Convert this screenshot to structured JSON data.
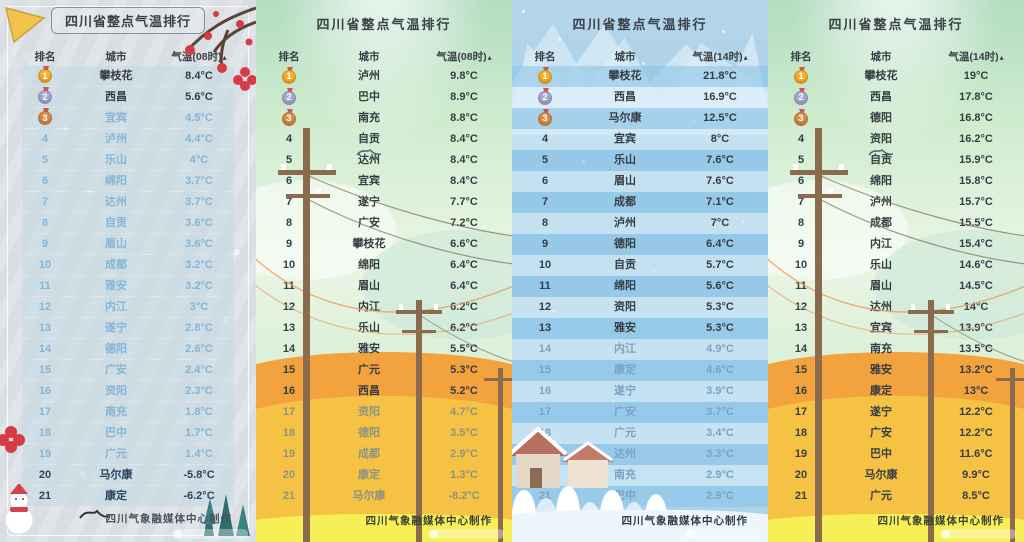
{
  "colors": {
    "accent_red": "#d6404a",
    "medal_gold": "#f4b12d",
    "medal_silver": "#a9a9cf",
    "medal_bronze": "#d98c46",
    "hill_orange": "#f2a33e",
    "hill_gold": "#f6c244",
    "hill_yellow": "#f6ef55"
  },
  "chart_data": [
    {
      "type": "table",
      "theme": "winter-frost-gray",
      "title": "四川省整点气温排行",
      "columns": [
        "排名",
        "城市",
        "气温(08时)"
      ],
      "sort_indicator": "▴",
      "footer": "四川气象融媒体中心制作",
      "rows": [
        [
          1,
          "攀枝花",
          "8.4°C"
        ],
        [
          2,
          "西昌",
          "5.6°C"
        ],
        [
          3,
          "宜宾",
          "4.5°C"
        ],
        [
          4,
          "泸州",
          "4.4°C"
        ],
        [
          5,
          "乐山",
          "4°C"
        ],
        [
          6,
          "绵阳",
          "3.7°C"
        ],
        [
          7,
          "达州",
          "3.7°C"
        ],
        [
          8,
          "自贡",
          "3.6°C"
        ],
        [
          9,
          "眉山",
          "3.6°C"
        ],
        [
          10,
          "成都",
          "3.2°C"
        ],
        [
          11,
          "雅安",
          "3.2°C"
        ],
        [
          12,
          "内江",
          "3°C"
        ],
        [
          13,
          "遂宁",
          "2.8°C"
        ],
        [
          14,
          "德阳",
          "2.6°C"
        ],
        [
          15,
          "广安",
          "2.4°C"
        ],
        [
          16,
          "资阳",
          "2.3°C"
        ],
        [
          17,
          "南充",
          "1.8°C"
        ],
        [
          18,
          "巴中",
          "1.7°C"
        ],
        [
          19,
          "广元",
          "1.4°C"
        ],
        [
          20,
          "马尔康",
          "-5.8°C"
        ],
        [
          21,
          "康定",
          "-6.2°C"
        ]
      ],
      "row_tones": [
        "dark",
        "dark",
        "light",
        "light",
        "light",
        "light",
        "light",
        "light",
        "light",
        "light",
        "light",
        "light",
        "light",
        "light",
        "light",
        "light",
        "light",
        "light",
        "light",
        "navy",
        "navy"
      ]
    },
    {
      "type": "table",
      "theme": "green-morning-hills",
      "title": "四川省整点气温排行",
      "columns": [
        "排名",
        "城市",
        "气温(08时)"
      ],
      "sort_indicator": "▴",
      "footer": "四川气象融媒体中心制作",
      "rows": [
        [
          1,
          "泸州",
          "9.8°C"
        ],
        [
          2,
          "巴中",
          "8.9°C"
        ],
        [
          3,
          "南充",
          "8.8°C"
        ],
        [
          4,
          "自贡",
          "8.4°C"
        ],
        [
          5,
          "达州",
          "8.4°C"
        ],
        [
          6,
          "宜宾",
          "8.4°C"
        ],
        [
          7,
          "遂宁",
          "7.7°C"
        ],
        [
          8,
          "广安",
          "7.2°C"
        ],
        [
          9,
          "攀枝花",
          "6.6°C"
        ],
        [
          10,
          "绵阳",
          "6.4°C"
        ],
        [
          11,
          "眉山",
          "6.4°C"
        ],
        [
          12,
          "内江",
          "6.2°C"
        ],
        [
          13,
          "乐山",
          "6.2°C"
        ],
        [
          14,
          "雅安",
          "5.5°C"
        ],
        [
          15,
          "广元",
          "5.3°C"
        ],
        [
          16,
          "西昌",
          "5.2°C"
        ],
        [
          17,
          "资阳",
          "4.7°C"
        ],
        [
          18,
          "德阳",
          "3.5°C"
        ],
        [
          19,
          "成都",
          "2.9°C"
        ],
        [
          20,
          "康定",
          "1.3°C"
        ],
        [
          21,
          "马尔康",
          "-8.2°C"
        ]
      ],
      "row_tones": [
        "dark",
        "dark",
        "dark",
        "dark",
        "dark",
        "dark",
        "dark",
        "dark",
        "dark",
        "dark",
        "dark",
        "dark",
        "dark",
        "dark",
        "dark",
        "dark",
        "muted",
        "muted",
        "muted",
        "muted",
        "muted"
      ]
    },
    {
      "type": "table",
      "theme": "blue-snow",
      "title": "四川省整点气温排行",
      "columns": [
        "排名",
        "城市",
        "气温(14时)"
      ],
      "sort_indicator": "▴",
      "footer": "四川气象融媒体中心制作",
      "rows": [
        [
          1,
          "攀枝花",
          "21.8°C"
        ],
        [
          2,
          "西昌",
          "16.9°C"
        ],
        [
          3,
          "马尔康",
          "12.5°C"
        ],
        [
          4,
          "宜宾",
          "8°C"
        ],
        [
          5,
          "乐山",
          "7.6°C"
        ],
        [
          6,
          "眉山",
          "7.6°C"
        ],
        [
          7,
          "成都",
          "7.1°C"
        ],
        [
          8,
          "泸州",
          "7°C"
        ],
        [
          9,
          "德阳",
          "6.4°C"
        ],
        [
          10,
          "自贡",
          "5.7°C"
        ],
        [
          11,
          "绵阳",
          "5.6°C"
        ],
        [
          12,
          "资阳",
          "5.3°C"
        ],
        [
          13,
          "雅安",
          "5.3°C"
        ],
        [
          14,
          "内江",
          "4.9°C"
        ],
        [
          15,
          "康定",
          "4.6°C"
        ],
        [
          16,
          "遂宁",
          "3.9°C"
        ],
        [
          17,
          "广安",
          "3.7°C"
        ],
        [
          18,
          "广元",
          "3.4°C"
        ],
        [
          19,
          "达州",
          "3.3°C"
        ],
        [
          20,
          "南充",
          "2.9°C"
        ],
        [
          21,
          "巴中",
          "2.9°C"
        ]
      ],
      "row_tones": [
        "dark",
        "dark",
        "dark",
        "dark",
        "dark",
        "dark",
        "dark",
        "dark",
        "dark",
        "dark",
        "dark",
        "dark",
        "dark",
        "muted",
        "muted",
        "muted",
        "muted",
        "muted",
        "muted",
        "muted",
        "muted"
      ]
    },
    {
      "type": "table",
      "theme": "green-afternoon-hills",
      "title": "四川省整点气温排行",
      "columns": [
        "排名",
        "城市",
        "气温(14时)"
      ],
      "sort_indicator": "▴",
      "footer": "四川气象融媒体中心制作",
      "rows": [
        [
          1,
          "攀枝花",
          "19°C"
        ],
        [
          2,
          "西昌",
          "17.8°C"
        ],
        [
          3,
          "德阳",
          "16.8°C"
        ],
        [
          4,
          "资阳",
          "16.2°C"
        ],
        [
          5,
          "自贡",
          "15.9°C"
        ],
        [
          6,
          "绵阳",
          "15.8°C"
        ],
        [
          7,
          "泸州",
          "15.7°C"
        ],
        [
          8,
          "成都",
          "15.5°C"
        ],
        [
          9,
          "内江",
          "15.4°C"
        ],
        [
          10,
          "乐山",
          "14.6°C"
        ],
        [
          11,
          "眉山",
          "14.5°C"
        ],
        [
          12,
          "达州",
          "14°C"
        ],
        [
          13,
          "宜宾",
          "13.9°C"
        ],
        [
          14,
          "南充",
          "13.5°C"
        ],
        [
          15,
          "雅安",
          "13.2°C"
        ],
        [
          16,
          "康定",
          "13°C"
        ],
        [
          17,
          "遂宁",
          "12.2°C"
        ],
        [
          18,
          "广安",
          "12.2°C"
        ],
        [
          19,
          "巴中",
          "11.6°C"
        ],
        [
          20,
          "马尔康",
          "9.9°C"
        ],
        [
          21,
          "广元",
          "8.5°C"
        ]
      ],
      "row_tones": [
        "dark",
        "dark",
        "dark",
        "dark",
        "dark",
        "dark",
        "dark",
        "dark",
        "dark",
        "dark",
        "dark",
        "dark",
        "dark",
        "dark",
        "dark",
        "dark",
        "dark",
        "dark",
        "dark",
        "dark",
        "dark"
      ]
    }
  ]
}
